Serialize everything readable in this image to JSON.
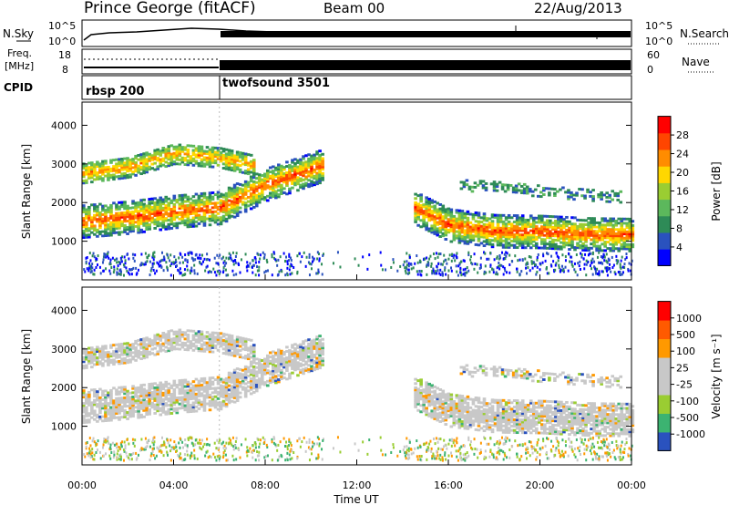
{
  "header": {
    "station": "Prince George (fitACF)",
    "beam": "Beam 00",
    "date": "22/Aug/2013"
  },
  "top_panels": {
    "nsky_label": "N.Sky",
    "nsky_ticks": [
      "10^5",
      "10^0"
    ],
    "nsearch_label": "N.Search",
    "nsearch_ticks": [
      "10^5",
      "10^0"
    ],
    "freq_label": "Freq.",
    "freq_unit": "[MHz]",
    "freq_ticks": [
      "18",
      "8"
    ],
    "nave_label": "Nave",
    "nave_ticks": [
      "60",
      "0"
    ],
    "cpid_label": "CPID",
    "cpid_segments": [
      {
        "label": "rbsp 200",
        "start_hour": 0,
        "end_hour": 6
      },
      {
        "label": "twofsound 3501",
        "start_hour": 6,
        "end_hour": 24
      }
    ]
  },
  "chart_data": [
    {
      "type": "heatmap",
      "name": "power",
      "ylabel": "Slant Range [km]",
      "yticks": [
        "1000",
        "2000",
        "3000",
        "4000"
      ],
      "ylim": [
        0,
        4600
      ],
      "xlim": [
        0,
        24
      ],
      "colorbar_label": "Power [dB]",
      "colorbar_ticks": [
        "4",
        "8",
        "12",
        "16",
        "20",
        "24",
        "28"
      ],
      "colorbar_colors": [
        "#0000ff",
        "#2a52be",
        "#2e8b57",
        "#5cb85c",
        "#9acd32",
        "#ffd700",
        "#ff8c00",
        "#ff4500",
        "#ff0000"
      ],
      "bands": [
        {
          "x": [
            0,
            2,
            4,
            6,
            8,
            10.5
          ],
          "y": [
            1550,
            1650,
            1800,
            1900,
            2500,
            3000
          ],
          "level": "strong"
        },
        {
          "x": [
            0,
            2,
            4,
            6,
            7.5
          ],
          "y": [
            2800,
            2950,
            3300,
            3200,
            3000
          ],
          "level": "medium"
        },
        {
          "x": [
            14.5,
            16,
            18,
            20,
            22,
            24
          ],
          "y": [
            1900,
            1450,
            1300,
            1280,
            1220,
            1200
          ],
          "level": "strong"
        },
        {
          "x": [
            16.5,
            18,
            20,
            22,
            23.5
          ],
          "y": [
            2500,
            2450,
            2350,
            2250,
            2200
          ],
          "level": "weak"
        }
      ]
    },
    {
      "type": "heatmap",
      "name": "velocity",
      "ylabel": "Slant Range [km]",
      "yticks": [
        "1000",
        "2000",
        "3000",
        "4000"
      ],
      "ylim": [
        0,
        4600
      ],
      "xlim": [
        0,
        24
      ],
      "colorbar_label": "Velocity [m s⁻¹]",
      "colorbar_ticks": [
        "1000",
        "500",
        "100",
        "25",
        "-25",
        "-100",
        "-500",
        "-1000"
      ],
      "colorbar_colors": [
        "#2a52be",
        "#3cb371",
        "#9acd32",
        "#c8c8c8",
        "#c8c8c8",
        "#ff9900",
        "#ff5a00",
        "#ff0000"
      ],
      "xlabel": "Time UT",
      "xticks": [
        "00:00",
        "04:00",
        "08:00",
        "12:00",
        "16:00",
        "20:00",
        "00:00"
      ]
    }
  ]
}
